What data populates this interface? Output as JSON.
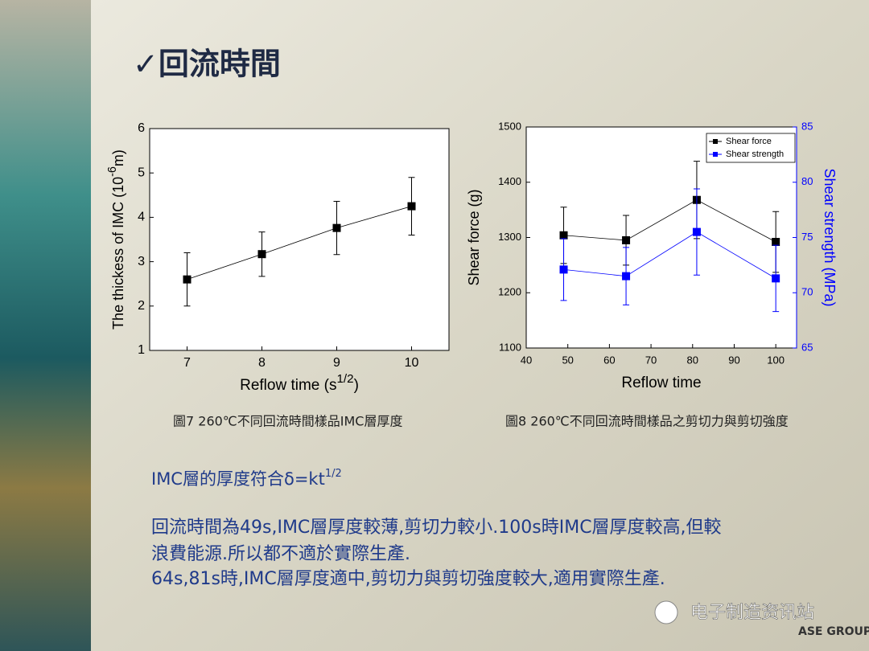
{
  "title": "✓回流時間",
  "chart_data": [
    {
      "type": "line",
      "x": [
        7,
        8,
        9,
        10
      ],
      "series": [
        {
          "color": "#000000",
          "values": [
            2.6,
            3.17,
            3.76,
            4.25
          ],
          "errors": [
            0.6,
            0.5,
            0.6,
            0.65
          ]
        }
      ],
      "xlim": [
        6.5,
        10.5
      ],
      "xticks": [
        7,
        8,
        9,
        10
      ],
      "ylim": [
        1,
        6
      ],
      "yticks": [
        1,
        2,
        3,
        4,
        5,
        6
      ],
      "xlabel": {
        "text": "Reflow time (s",
        "sup": "1/2",
        "tail": ")"
      },
      "ylabel": {
        "text": "The thickess of IMC (10",
        "sup": "-6",
        "tail": "m)"
      },
      "caption": "圖7 260℃不同回流時間樣品IMC層厚度"
    },
    {
      "type": "line",
      "x": [
        49,
        64,
        81,
        100
      ],
      "series": [
        {
          "name": "Shear force",
          "color": "#000000",
          "values": [
            1304,
            1295,
            1368,
            1292
          ],
          "errors": [
            51,
            45,
            70,
            55
          ]
        },
        {
          "name": "Shear strength",
          "color": "#0000ff",
          "axis": "y2",
          "values": [
            72.1,
            71.5,
            75.5,
            71.3
          ],
          "errors": [
            2.8,
            2.6,
            3.9,
            3
          ]
        }
      ],
      "xlim": [
        40,
        105
      ],
      "xticks": [
        40,
        50,
        60,
        70,
        80,
        90,
        100
      ],
      "ylim": [
        1100,
        1500
      ],
      "yticks": [
        1100,
        1200,
        1300,
        1400,
        1500
      ],
      "y2lim": [
        65,
        85
      ],
      "y2ticks": [
        65,
        70,
        75,
        80,
        85
      ],
      "xlabel": {
        "text": "Reflow time"
      },
      "ylabel": {
        "text": "Shear force (g)"
      },
      "y2label": {
        "text": "Shear strength (MPa)"
      },
      "legend": "top-right",
      "caption": "圖8 260℃不同回流時間樣品之剪切力與剪切強度"
    }
  ],
  "body": {
    "formula": "IMC層的厚度符合δ=kt",
    "formula_sup": "1/2",
    "lines": [
      "回流時間為49s,IMC層厚度較薄,剪切力較小.100s時IMC層厚度較高,但較",
      "浪費能源.所以都不適於實際生產.",
      "64s,81s時,IMC層厚度適中,剪切力與剪切強度較大,適用實際生產."
    ]
  },
  "watermark": {
    "text": "电子制造资讯站",
    "logo": "ASE GROUP"
  }
}
